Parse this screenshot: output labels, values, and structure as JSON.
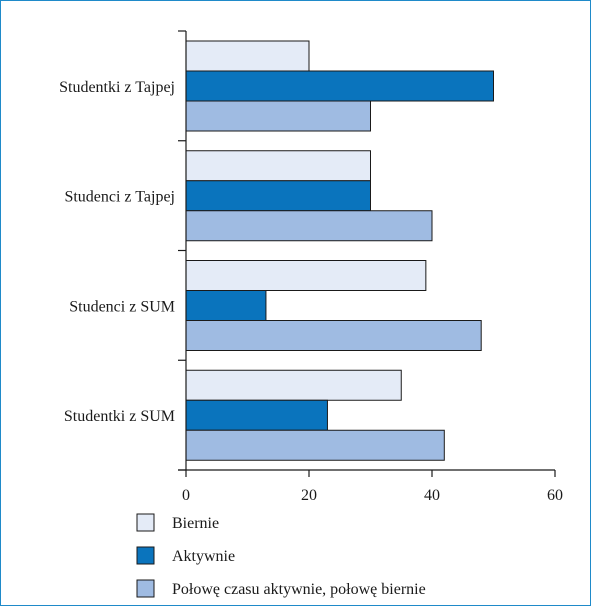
{
  "chart_data": {
    "type": "bar",
    "orientation": "horizontal",
    "categories": [
      "Studentki z Tajpej",
      "Studenci z Tajpej",
      "Studenci z SUM",
      "Studentki z SUM"
    ],
    "series": [
      {
        "name": "Biernie",
        "values": [
          20,
          30,
          39,
          35
        ],
        "color": "#e4ebf7"
      },
      {
        "name": "Aktywnie",
        "values": [
          50,
          30,
          13,
          23
        ],
        "color": "#0a74bd"
      },
      {
        "name": "Połowę czasu aktywnie, połowę biernie",
        "values": [
          30,
          40,
          48,
          42
        ],
        "color": "#9fbbe2"
      }
    ],
    "xlim": [
      0,
      60
    ],
    "xticks": [
      "0",
      "20",
      "40",
      "60"
    ],
    "grid": false,
    "legend_position": "bottom-left",
    "title": "",
    "xlabel": "",
    "ylabel": ""
  }
}
